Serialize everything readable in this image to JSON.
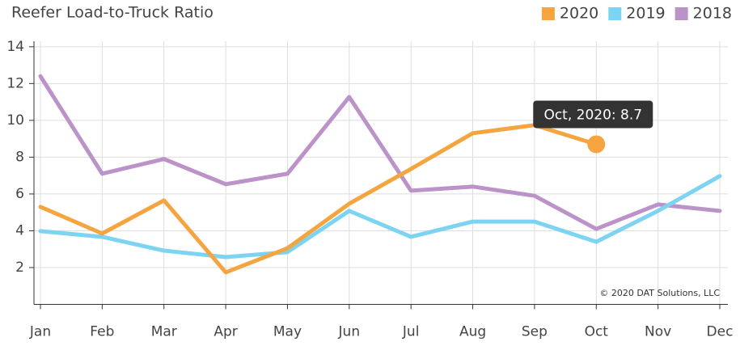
{
  "chart_data": {
    "type": "line",
    "title": "Reefer Load-to-Truck Ratio",
    "categories": [
      "Jan",
      "Feb",
      "Mar",
      "Apr",
      "May",
      "Jun",
      "Jul",
      "Aug",
      "Sep",
      "Oct",
      "Nov",
      "Dec"
    ],
    "series": [
      {
        "name": "2020",
        "color": "#f5a540",
        "values": [
          5.3,
          3.85,
          5.65,
          1.74,
          3.05,
          5.47,
          7.36,
          9.3,
          9.74,
          8.7,
          null,
          null
        ]
      },
      {
        "name": "2019",
        "color": "#7dd3f2",
        "values": [
          3.98,
          3.67,
          2.92,
          2.57,
          2.84,
          5.08,
          3.67,
          4.5,
          4.5,
          3.4,
          5.08,
          6.97
        ]
      },
      {
        "name": "2018",
        "color": "#bc93c9",
        "values": [
          12.4,
          7.1,
          7.9,
          6.53,
          7.1,
          11.27,
          6.18,
          6.4,
          5.9,
          4.1,
          5.43,
          5.08
        ]
      }
    ],
    "ylim": [
      0,
      14.3
    ],
    "yticks": [
      2,
      4,
      6,
      8,
      10,
      12,
      14
    ],
    "grid": true,
    "legend": "top-right",
    "annotations": [
      "Oct, 2020: 8.7",
      "© 2020 DAT Solutions, LLC"
    ]
  }
}
